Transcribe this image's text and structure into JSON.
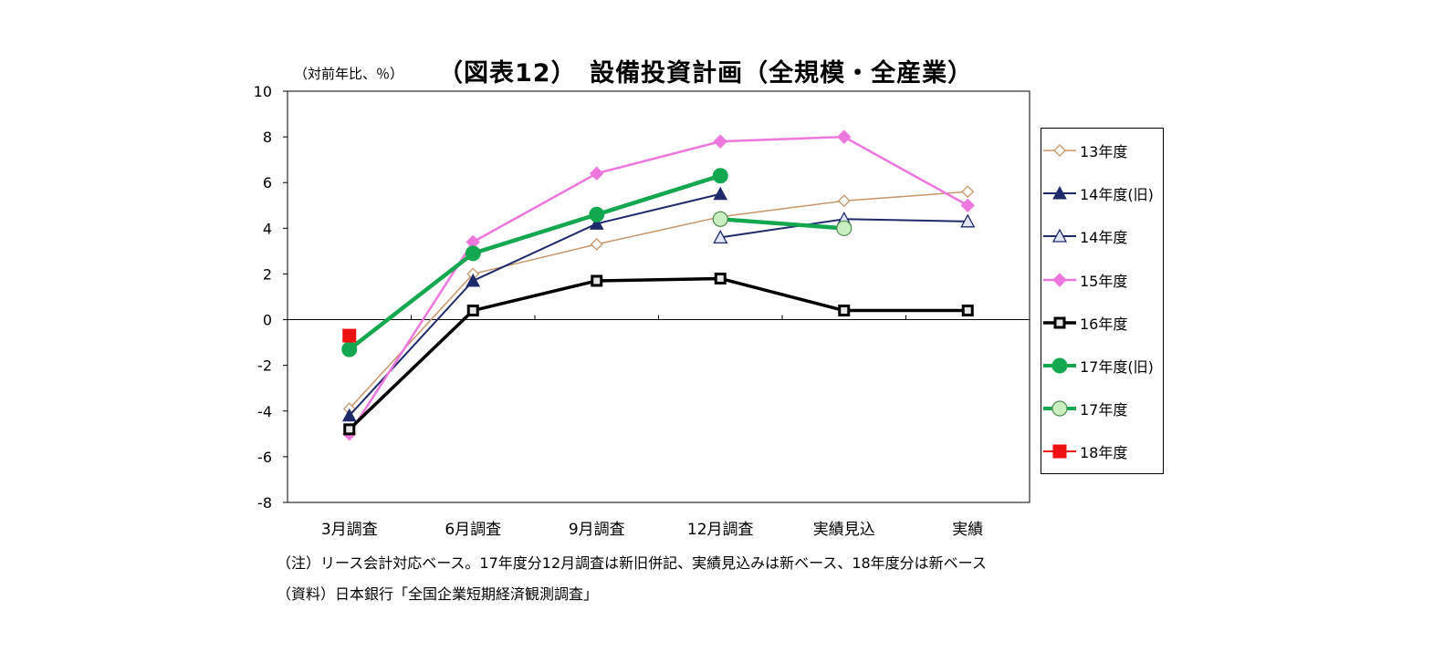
{
  "chart_data": {
    "type": "line",
    "title": "（図表12）　設備投資計画（全規模・全産業）",
    "ylabel": "（対前年比、％）",
    "xlabel": "",
    "ylim": [
      -8,
      10
    ],
    "yticks": [
      10,
      8,
      6,
      4,
      2,
      0,
      -2,
      -4,
      -6,
      -8
    ],
    "categories": [
      "3月調査",
      "6月調査",
      "9月調査",
      "12月調査",
      "実績見込",
      "実績"
    ],
    "grid": false,
    "legend_position": "right",
    "series": [
      {
        "name": "13年度",
        "values": [
          -3.9,
          2.0,
          3.3,
          4.5,
          5.2,
          5.6
        ],
        "color": "#c8956a",
        "marker": "diamond-open",
        "width": 1.5
      },
      {
        "name": "14年度(旧)",
        "values": [
          -4.2,
          1.7,
          4.2,
          5.5,
          null,
          null
        ],
        "color": "#1f2a6b",
        "marker": "triangle-filled",
        "width": 2
      },
      {
        "name": "14年度",
        "values": [
          null,
          null,
          null,
          3.6,
          4.4,
          4.3
        ],
        "color": "#1f2a6b",
        "marker": "triangle-open",
        "width": 2
      },
      {
        "name": "15年度",
        "values": [
          -5.0,
          3.4,
          6.4,
          7.8,
          8.0,
          5.0
        ],
        "color": "#ee77dd",
        "marker": "diamond-filled",
        "width": 2.5
      },
      {
        "name": "16年度",
        "values": [
          -4.8,
          0.4,
          1.7,
          1.8,
          0.4,
          0.4
        ],
        "color": "#000000",
        "marker": "square-open",
        "width": 3.5
      },
      {
        "name": "17年度(旧)",
        "values": [
          -1.3,
          2.9,
          4.6,
          6.3,
          null,
          null
        ],
        "color": "#13a84f",
        "marker": "circle-filled",
        "width": 4.5
      },
      {
        "name": "17年度",
        "values": [
          null,
          null,
          null,
          4.4,
          4.0,
          null
        ],
        "color": "#13a84f",
        "marker": "circle-light",
        "width": 4.5
      },
      {
        "name": "18年度",
        "values": [
          -0.7,
          null,
          null,
          null,
          null,
          null
        ],
        "color": "#ee1111",
        "marker": "square-filled",
        "width": 2
      }
    ]
  },
  "notes": {
    "note1": "（注）リース会計対応ベース。17年度分12月調査は新旧併記、実績見込みは新ベース、18年度分は新ベース",
    "note2": "（資料）日本銀行「全国企業短期経済観測調査」"
  }
}
